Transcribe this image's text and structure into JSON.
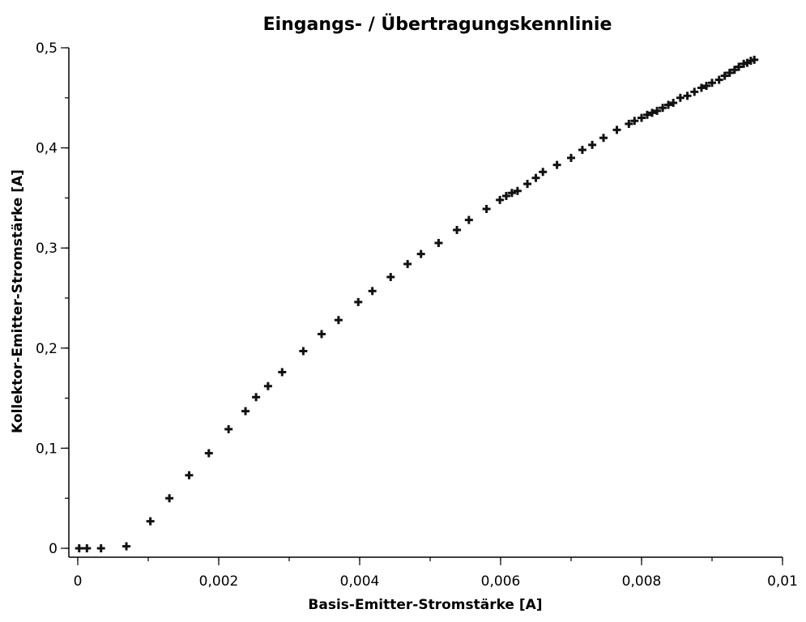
{
  "chart_data": {
    "type": "scatter",
    "title": "Eingangs- / Übertragungskennlinie",
    "xlabel": "Basis-Emitter-Stromstärke [A]",
    "ylabel": "Kollektor-Emitter-Stromstärke [A]",
    "xlim": [
      0,
      0.01
    ],
    "ylim": [
      0,
      0.5
    ],
    "x_ticks": [
      {
        "value": 0,
        "label": "0"
      },
      {
        "value": 0.002,
        "label": "0,002"
      },
      {
        "value": 0.004,
        "label": "0,004"
      },
      {
        "value": 0.006,
        "label": "0,006"
      },
      {
        "value": 0.008,
        "label": "0,008"
      },
      {
        "value": 0.01,
        "label": "0,01"
      }
    ],
    "y_ticks": [
      {
        "value": 0,
        "label": "0"
      },
      {
        "value": 0.1,
        "label": "0,1"
      },
      {
        "value": 0.2,
        "label": "0,2"
      },
      {
        "value": 0.3,
        "label": "0,3"
      },
      {
        "value": 0.4,
        "label": "0,4"
      },
      {
        "value": 0.5,
        "label": "0,5"
      }
    ],
    "x_minor_step": 0.001,
    "y_minor_step": 0.05,
    "grid": false,
    "marker": "plus",
    "marker_color": "#111111",
    "points": [
      [
        2e-05,
        0.0
      ],
      [
        0.00013,
        0.0
      ],
      [
        0.00033,
        0.0
      ],
      [
        0.00069,
        0.002
      ],
      [
        0.00103,
        0.027
      ],
      [
        0.0013,
        0.05
      ],
      [
        0.00158,
        0.073
      ],
      [
        0.00186,
        0.095
      ],
      [
        0.00214,
        0.119
      ],
      [
        0.00238,
        0.137
      ],
      [
        0.00253,
        0.151
      ],
      [
        0.0027,
        0.162
      ],
      [
        0.0029,
        0.176
      ],
      [
        0.0032,
        0.197
      ],
      [
        0.00346,
        0.214
      ],
      [
        0.0037,
        0.228
      ],
      [
        0.00398,
        0.246
      ],
      [
        0.00418,
        0.257
      ],
      [
        0.00444,
        0.271
      ],
      [
        0.00468,
        0.284
      ],
      [
        0.00487,
        0.294
      ],
      [
        0.00512,
        0.305
      ],
      [
        0.00538,
        0.318
      ],
      [
        0.00555,
        0.328
      ],
      [
        0.0058,
        0.339
      ],
      [
        0.00599,
        0.348
      ],
      [
        0.00608,
        0.352
      ],
      [
        0.00616,
        0.355
      ],
      [
        0.00624,
        0.357
      ],
      [
        0.00638,
        0.364
      ],
      [
        0.0065,
        0.37
      ],
      [
        0.0066,
        0.376
      ],
      [
        0.0068,
        0.383
      ],
      [
        0.007,
        0.39
      ],
      [
        0.00716,
        0.398
      ],
      [
        0.0073,
        0.403
      ],
      [
        0.00746,
        0.41
      ],
      [
        0.00765,
        0.418
      ],
      [
        0.00782,
        0.424
      ],
      [
        0.0079,
        0.427
      ],
      [
        0.008,
        0.43
      ],
      [
        0.00808,
        0.433
      ],
      [
        0.00815,
        0.435
      ],
      [
        0.00822,
        0.437
      ],
      [
        0.0083,
        0.44
      ],
      [
        0.00838,
        0.443
      ],
      [
        0.00845,
        0.445
      ],
      [
        0.00855,
        0.45
      ],
      [
        0.00865,
        0.452
      ],
      [
        0.00875,
        0.456
      ],
      [
        0.00885,
        0.46
      ],
      [
        0.00892,
        0.462
      ],
      [
        0.009,
        0.465
      ],
      [
        0.0091,
        0.468
      ],
      [
        0.00918,
        0.472
      ],
      [
        0.00925,
        0.475
      ],
      [
        0.00932,
        0.478
      ],
      [
        0.00938,
        0.481
      ],
      [
        0.00945,
        0.484
      ],
      [
        0.0095,
        0.485
      ],
      [
        0.00955,
        0.487
      ],
      [
        0.0096,
        0.488
      ]
    ]
  }
}
